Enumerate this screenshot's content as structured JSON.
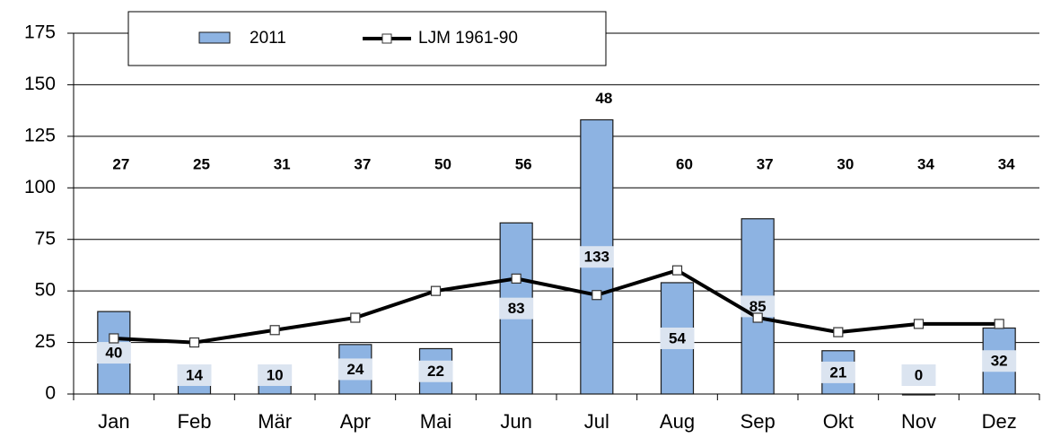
{
  "chart_data": {
    "type": "bar",
    "categories": [
      "Jan",
      "Feb",
      "Mär",
      "Apr",
      "Mai",
      "Jun",
      "Jul",
      "Aug",
      "Sep",
      "Okt",
      "Nov",
      "Dez"
    ],
    "series": [
      {
        "name": "2011",
        "type": "bar",
        "color": "#8db3e2",
        "values": [
          40,
          14,
          10,
          24,
          22,
          83,
          133,
          54,
          85,
          21,
          0,
          32
        ]
      },
      {
        "name": "LJM 1961-90",
        "type": "line",
        "color": "#000000",
        "values": [
          27,
          25,
          31,
          37,
          50,
          56,
          48,
          60,
          37,
          30,
          34,
          34
        ]
      }
    ],
    "ylim": [
      0,
      175
    ],
    "yticks": [
      0,
      25,
      50,
      75,
      100,
      125,
      150,
      175
    ],
    "grid": true,
    "legend": "top"
  }
}
